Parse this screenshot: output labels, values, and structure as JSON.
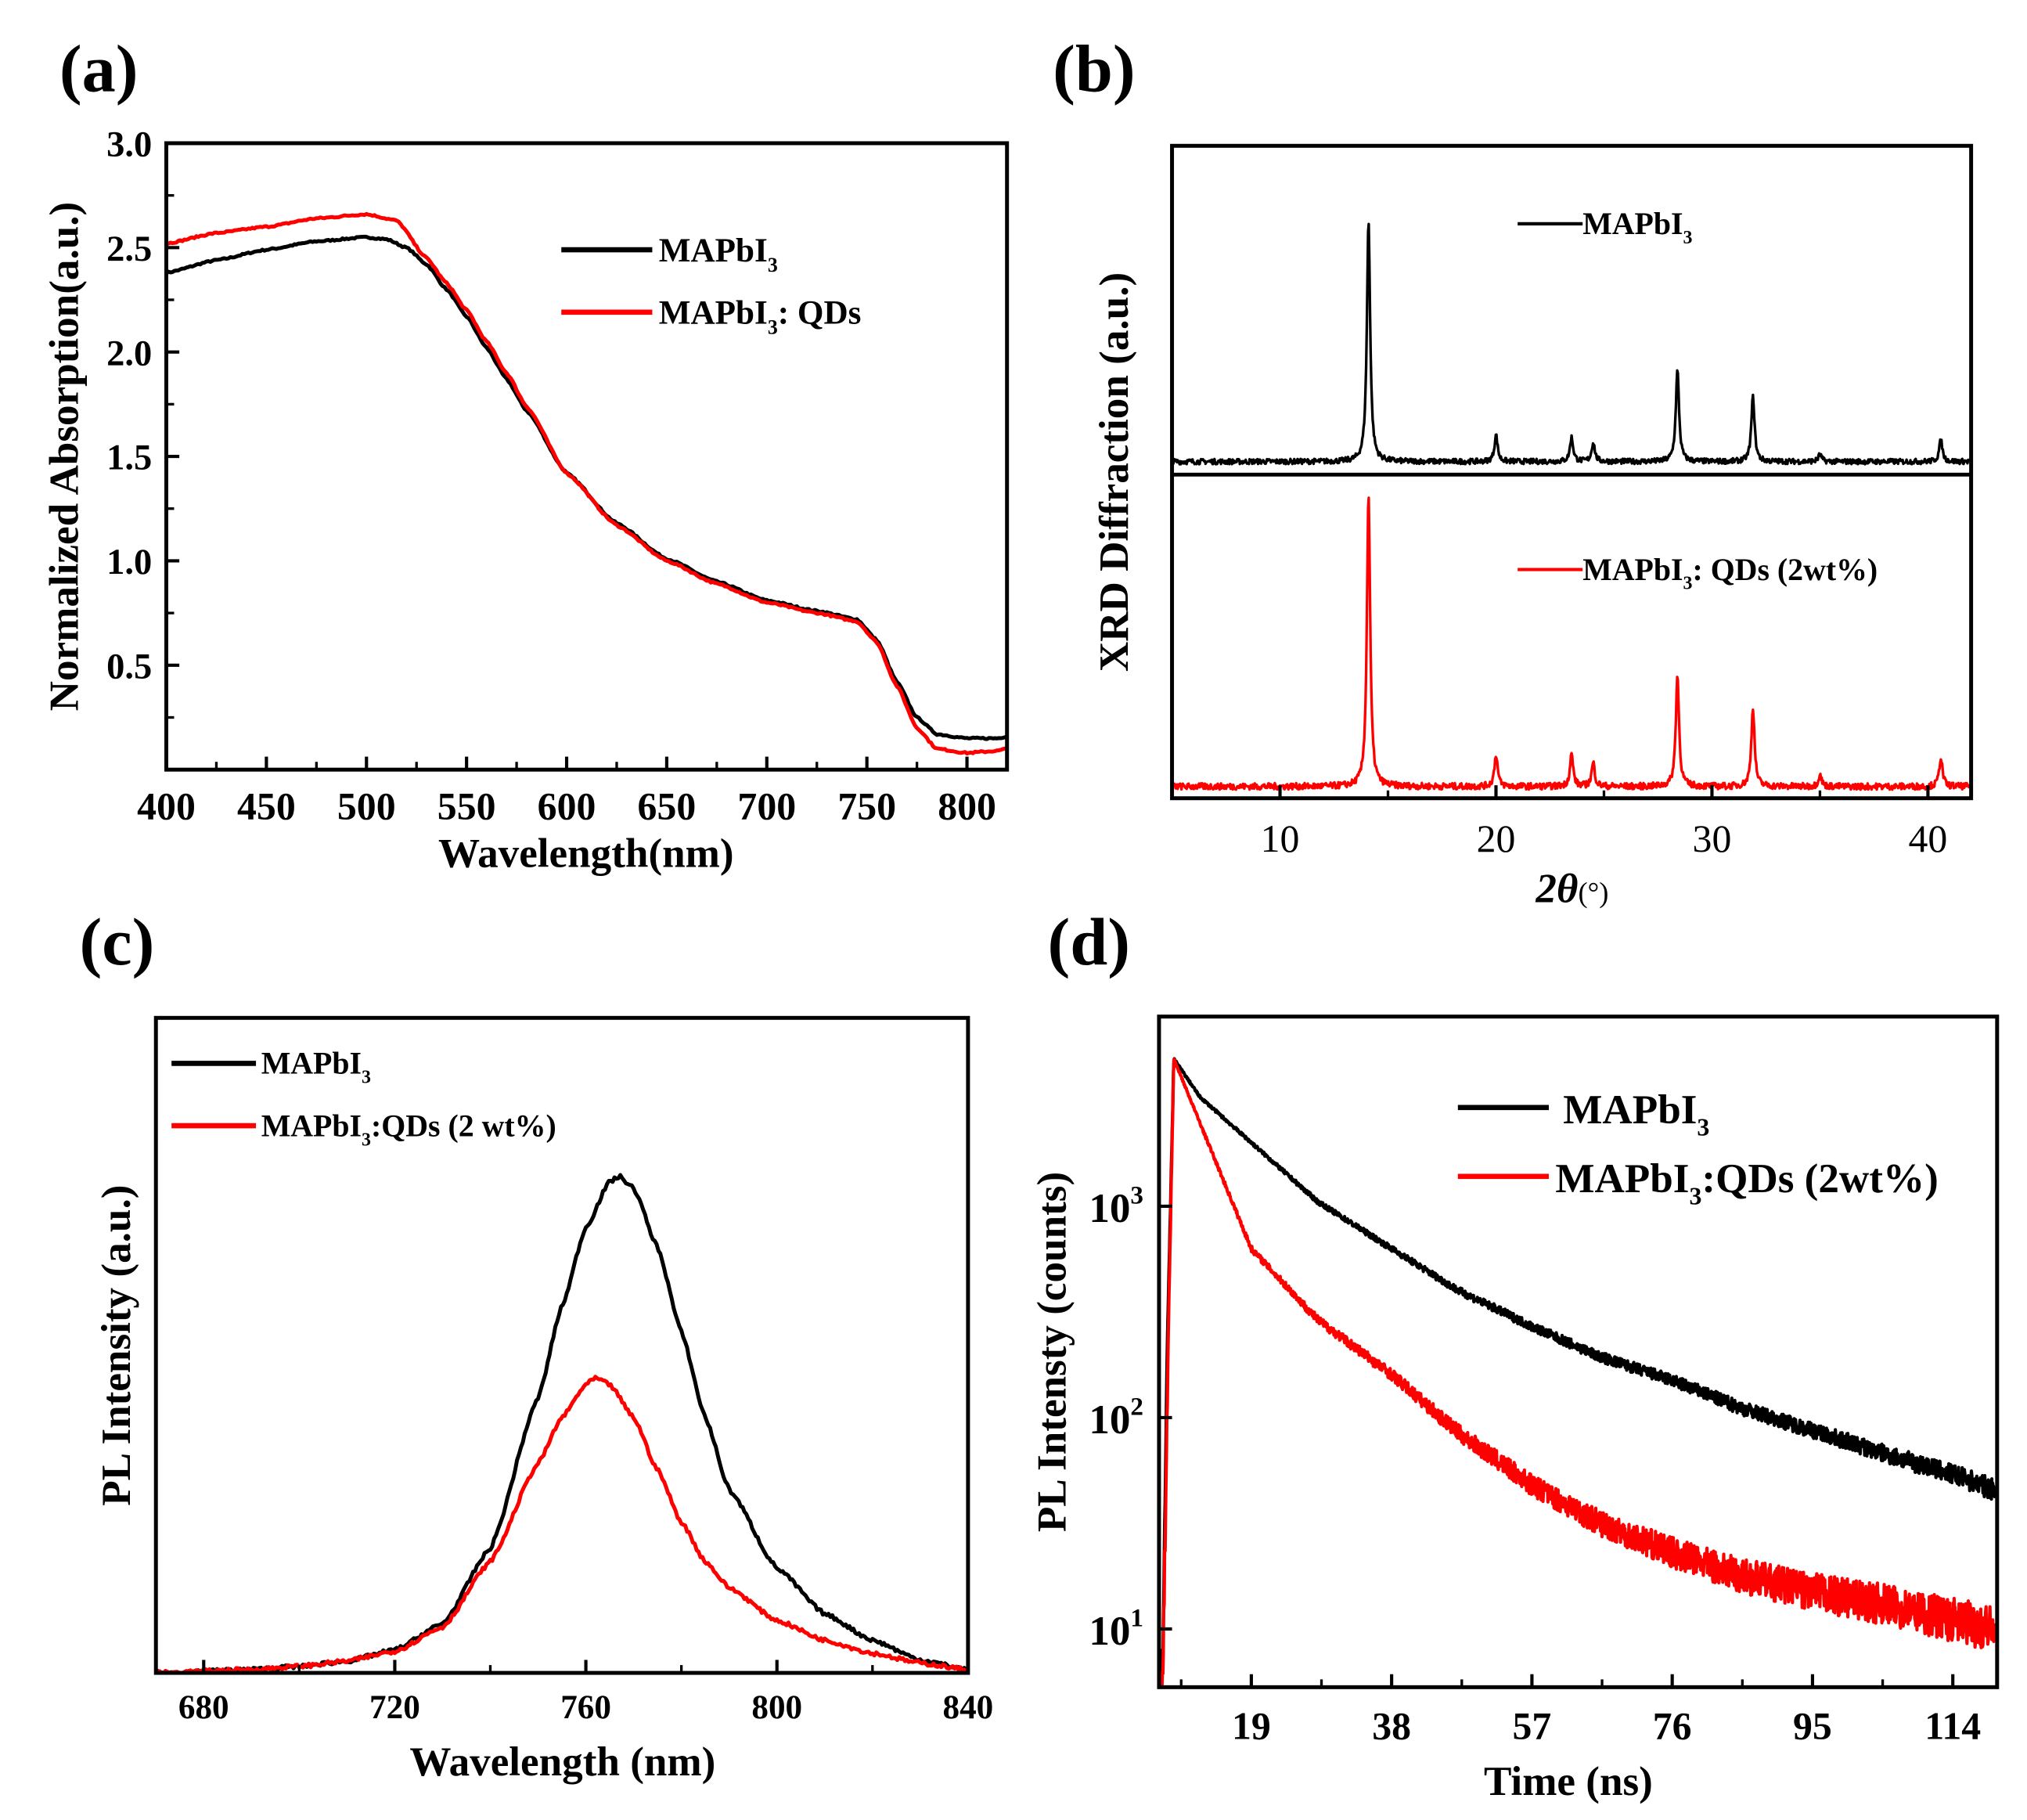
{
  "colors": {
    "black_series": "#000000",
    "red_series": "#ff0000",
    "axis": "#000000"
  },
  "chart_data": [
    {
      "id": "a",
      "panel_label": "(a)",
      "type": "line",
      "xlabel": "Wavelength(nm)",
      "ylabel": "Normalized Absorption(a.u.)",
      "xlim": [
        400,
        820
      ],
      "ylim": [
        0,
        3.0
      ],
      "xticks": [
        400,
        450,
        500,
        550,
        600,
        650,
        700,
        750,
        800
      ],
      "xtick_labels": [
        "400",
        "450",
        "500",
        "550",
        "600",
        "650",
        "700",
        "750",
        "800"
      ],
      "yticks": [
        0.5,
        1.0,
        1.5,
        2.0,
        2.5,
        3.0
      ],
      "ytick_labels": [
        "0.5",
        "1.0",
        "1.5",
        "2.0",
        "2.5",
        "3.0"
      ],
      "legend_placement": "top-right",
      "series": [
        {
          "name": "MAPbI3",
          "label": {
            "pre": "MAPbI",
            "sub": "3",
            "post": ""
          },
          "color": "#000000",
          "x": [
            400,
            425,
            450,
            475,
            500,
            510,
            520,
            530,
            540,
            550,
            560,
            570,
            580,
            600,
            625,
            650,
            675,
            700,
            725,
            745,
            755,
            765,
            775,
            785,
            800,
            815,
            820
          ],
          "y": [
            2.38,
            2.44,
            2.49,
            2.53,
            2.55,
            2.54,
            2.5,
            2.42,
            2.3,
            2.17,
            2.02,
            1.87,
            1.72,
            1.42,
            1.18,
            1.01,
            0.9,
            0.81,
            0.76,
            0.72,
            0.62,
            0.42,
            0.25,
            0.17,
            0.15,
            0.15,
            0.16
          ]
        },
        {
          "name": "MAPbI3: QDs",
          "label": {
            "pre": "MAPbI",
            "sub": "3",
            "post": ": QDs"
          },
          "color": "#ff0000",
          "x": [
            400,
            425,
            450,
            475,
            500,
            515,
            530,
            540,
            550,
            560,
            570,
            580,
            600,
            625,
            650,
            675,
            700,
            725,
            745,
            755,
            765,
            775,
            785,
            800,
            815,
            820
          ],
          "y": [
            2.52,
            2.57,
            2.6,
            2.64,
            2.66,
            2.63,
            2.45,
            2.33,
            2.2,
            2.05,
            1.9,
            1.74,
            1.42,
            1.17,
            1.0,
            0.89,
            0.8,
            0.75,
            0.71,
            0.61,
            0.4,
            0.2,
            0.1,
            0.08,
            0.09,
            0.1
          ]
        }
      ]
    },
    {
      "id": "b",
      "panel_label": "(b)",
      "type": "line",
      "xlabel_main": "2θ",
      "xlabel_unit": "(°)",
      "ylabel": "XRD Diffraction (a.u.)",
      "xlim": [
        5,
        42
      ],
      "xticks": [
        10,
        20,
        30,
        40
      ],
      "xtick_labels": [
        "10",
        "20",
        "30",
        "40"
      ],
      "stacked": true,
      "legend_placement": "top-center of each panel",
      "series": [
        {
          "name": "MAPbI3",
          "label": {
            "pre": "MAPbI",
            "sub": "3",
            "post": ""
          },
          "color": "#000000",
          "peaks_2theta": [
            14.1,
            20.0,
            23.5,
            24.5,
            28.4,
            31.9,
            35.0,
            40.6
          ],
          "peaks_rel_intensity": [
            100,
            11,
            10,
            8,
            38,
            27,
            3,
            9
          ]
        },
        {
          "name": "MAPbI3: QDs (2wt%)",
          "label": {
            "pre": "MAPbI",
            "sub": "3",
            "post": ": QDs (2wt%)"
          },
          "color": "#ff0000",
          "peaks_2theta": [
            14.1,
            20.0,
            23.5,
            24.5,
            28.4,
            31.9,
            35.0,
            40.6
          ],
          "peaks_rel_intensity": [
            100,
            11,
            11,
            8,
            38,
            27,
            4,
            10
          ]
        }
      ]
    },
    {
      "id": "c",
      "panel_label": "(c)",
      "type": "line",
      "xlabel": "Wavelength (nm)",
      "ylabel": "PL Intensity (a.u.)",
      "xlim": [
        670,
        840
      ],
      "ylim": [
        0,
        1
      ],
      "xticks": [
        680,
        720,
        760,
        800,
        840
      ],
      "xtick_labels": [
        "680",
        "720",
        "760",
        "800",
        "840"
      ],
      "legend_placement": "top-left",
      "series": [
        {
          "name": "MAPbI3",
          "label": {
            "pre": "MAPbI",
            "sub": "3",
            "post": ""
          },
          "color": "#000000",
          "x": [
            670,
            690,
            700,
            710,
            720,
            730,
            740,
            750,
            755,
            760,
            765,
            767,
            770,
            775,
            780,
            785,
            790,
            800,
            810,
            820,
            830,
            840
          ],
          "y": [
            0,
            0.005,
            0.01,
            0.018,
            0.035,
            0.075,
            0.19,
            0.42,
            0.56,
            0.68,
            0.75,
            0.758,
            0.74,
            0.65,
            0.52,
            0.39,
            0.28,
            0.16,
            0.09,
            0.05,
            0.02,
            0.005
          ]
        },
        {
          "name": "MAPbI3:QDs (2 wt%)",
          "label": {
            "pre": "MAPbI",
            "sub": "3",
            "post": ":QDs (2 wt%)"
          },
          "color": "#ff0000",
          "x": [
            670,
            690,
            700,
            710,
            720,
            730,
            740,
            750,
            755,
            760,
            762,
            765,
            770,
            775,
            780,
            785,
            790,
            800,
            810,
            820,
            830,
            840
          ],
          "y": [
            0,
            0.005,
            0.01,
            0.018,
            0.033,
            0.07,
            0.17,
            0.32,
            0.39,
            0.44,
            0.45,
            0.44,
            0.39,
            0.31,
            0.23,
            0.17,
            0.13,
            0.08,
            0.05,
            0.03,
            0.015,
            0.005
          ]
        }
      ]
    },
    {
      "id": "d",
      "panel_label": "(d)",
      "type": "line",
      "yscale": "log",
      "xlabel": "Time (ns)",
      "ylabel": "PL Intensty (counts)",
      "xlim": [
        6.5,
        120
      ],
      "ylim": [
        5.3,
        7900
      ],
      "xticks": [
        19,
        38,
        57,
        76,
        95,
        114
      ],
      "xtick_labels": [
        "19",
        "38",
        "57",
        "76",
        "95",
        "114"
      ],
      "yticks": [
        10,
        100,
        1000
      ],
      "ytick_labels": [
        {
          "base": "10",
          "exp": "1"
        },
        {
          "base": "10",
          "exp": "2"
        },
        {
          "base": "10",
          "exp": "3"
        }
      ],
      "legend_placement": "top-right",
      "series": [
        {
          "name": "MAPbI3",
          "label": {
            "pre": "MAPbI",
            "sub": "3",
            "post": ""
          },
          "color": "#000000",
          "x": [
            7,
            7.6,
            8.5,
            12,
            19,
            28,
            38,
            47,
            57,
            66,
            76,
            85,
            95,
            105,
            114,
            120
          ],
          "y": [
            6,
            200,
            5000,
            3300,
            2000,
            1050,
            630,
            400,
            270,
            195,
            150,
            112,
            87,
            67,
            54,
            45
          ]
        },
        {
          "name": "MAPbI3:QDs (2wt%)",
          "label": {
            "pre": "MAPbI",
            "sub": "3",
            "post": ":QDs (2wt%)"
          },
          "color": "#ff0000",
          "x": [
            7,
            7.8,
            8.5,
            12,
            19,
            28,
            38,
            47,
            57,
            66,
            76,
            85,
            95,
            105,
            114,
            120
          ],
          "y": [
            5.3,
            300,
            5000,
            2500,
            630,
            290,
            160,
            85,
            48,
            32,
            23,
            18,
            15,
            13,
            11,
            10
          ]
        }
      ]
    }
  ]
}
